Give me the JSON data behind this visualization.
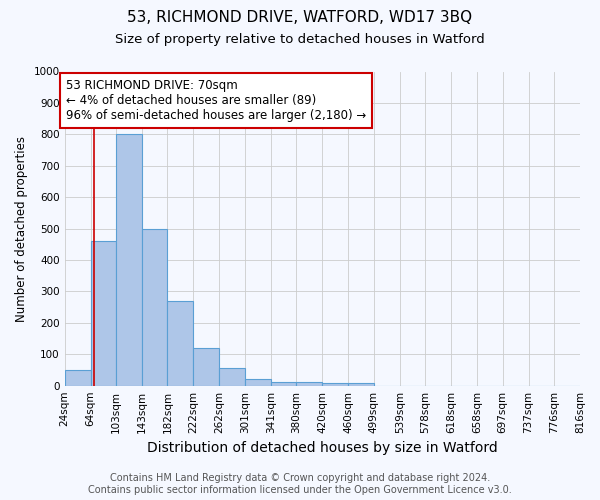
{
  "title": "53, RICHMOND DRIVE, WATFORD, WD17 3BQ",
  "subtitle": "Size of property relative to detached houses in Watford",
  "xlabel": "Distribution of detached houses by size in Watford",
  "ylabel": "Number of detached properties",
  "bin_labels": [
    "24sqm",
    "64sqm",
    "103sqm",
    "143sqm",
    "182sqm",
    "222sqm",
    "262sqm",
    "301sqm",
    "341sqm",
    "380sqm",
    "420sqm",
    "460sqm",
    "499sqm",
    "539sqm",
    "578sqm",
    "618sqm",
    "658sqm",
    "697sqm",
    "737sqm",
    "776sqm",
    "816sqm"
  ],
  "bin_edges": [
    24,
    64,
    103,
    143,
    182,
    222,
    262,
    301,
    341,
    380,
    420,
    460,
    499,
    539,
    578,
    618,
    658,
    697,
    737,
    776,
    816
  ],
  "bar_heights": [
    50,
    460,
    800,
    500,
    270,
    120,
    55,
    22,
    12,
    12,
    8,
    8,
    0,
    0,
    0,
    0,
    0,
    0,
    0,
    0
  ],
  "bar_color": "#aec6e8",
  "bar_edge_color": "#5a9fd4",
  "bar_linewidth": 0.8,
  "property_size": 70,
  "red_line_color": "#cc0000",
  "annotation_text": "53 RICHMOND DRIVE: 70sqm\n← 4% of detached houses are smaller (89)\n96% of semi-detached houses are larger (2,180) →",
  "annotation_box_color": "#ffffff",
  "annotation_edge_color": "#cc0000",
  "ylim": [
    0,
    1000
  ],
  "yticks": [
    0,
    100,
    200,
    300,
    400,
    500,
    600,
    700,
    800,
    900,
    1000
  ],
  "grid_color": "#cccccc",
  "background_color": "#f5f8ff",
  "footer_line1": "Contains HM Land Registry data © Crown copyright and database right 2024.",
  "footer_line2": "Contains public sector information licensed under the Open Government Licence v3.0.",
  "title_fontsize": 11,
  "subtitle_fontsize": 9.5,
  "xlabel_fontsize": 10,
  "ylabel_fontsize": 8.5,
  "tick_fontsize": 7.5,
  "annotation_fontsize": 8.5,
  "footer_fontsize": 7
}
